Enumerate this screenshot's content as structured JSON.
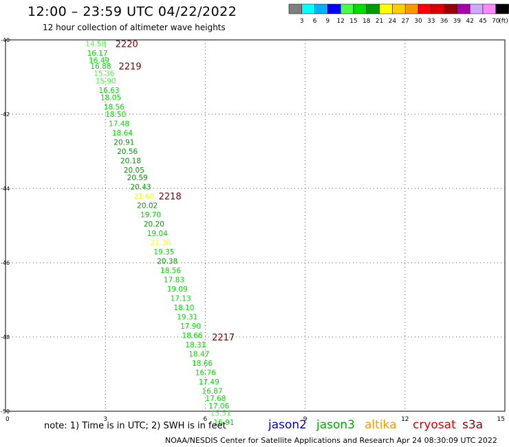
{
  "header": {
    "title": "12:00 – 23:59 UTC 04/22/2022",
    "subtitle": "12 hour collection of altimeter wave heights"
  },
  "footer": {
    "note": "note:  1) Time is in UTC; 2) SWH is in feet",
    "credit": "NOAA/NESDIS Center for Satellite Applications and Research    Apr 24 08:30:09 UTC 2022"
  },
  "satellites": [
    {
      "name": "jason2",
      "color": "#0000dd"
    },
    {
      "name": "jason3",
      "color": "#00aa00"
    },
    {
      "name": "altika",
      "color": "#ff9900"
    },
    {
      "name": "cryosat",
      "color": "#dd0000"
    },
    {
      "name": "s3a",
      "color": "#990000"
    }
  ],
  "colorbar": {
    "unit": "(ft)",
    "ticks": [
      "3",
      "6",
      "9",
      "12",
      "15",
      "18",
      "21",
      "24",
      "27",
      "30",
      "33",
      "36",
      "39",
      "42",
      "45",
      "70"
    ],
    "colors": [
      "#808080",
      "#00ffff",
      "#00b0ff",
      "#0000ff",
      "#44ff44",
      "#00dd00",
      "#009900",
      "#ffff00",
      "#ffcc00",
      "#ff9900",
      "#ff0000",
      "#dd0000",
      "#990000",
      "#aa00aa",
      "#ccaaff",
      "#ff88ff",
      "#000000"
    ]
  },
  "chart_data": {
    "type": "scatter",
    "title": "12:00 – 23:59 UTC 04/22/2022",
    "xlim": [
      0,
      15
    ],
    "ylim": [
      -50,
      -40
    ],
    "xticks": [
      "0",
      "3",
      "6",
      "9",
      "12",
      "15"
    ],
    "xtick_values": [
      0,
      3,
      6,
      9,
      12,
      15
    ],
    "yticks": [
      "-40",
      "-42",
      "-44",
      "-46",
      "-48",
      "-50"
    ],
    "ytick_values": [
      -40,
      -42,
      -44,
      -46,
      -48,
      -50
    ],
    "grid": true,
    "passes": [
      {
        "label": "2220",
        "x": 3.3,
        "y": -40.1
      },
      {
        "label": "2219",
        "x": 3.4,
        "y": -40.7
      },
      {
        "label": "2218",
        "x": 4.6,
        "y": -44.2
      },
      {
        "label": "2217",
        "x": 6.2,
        "y": -48.0
      }
    ],
    "points": [
      {
        "x": 2.4,
        "y": -40.1,
        "swh": "14.58",
        "color": "#44ff44"
      },
      {
        "x": 2.45,
        "y": -40.35,
        "swh": "16.17",
        "color": "#00dd00"
      },
      {
        "x": 2.5,
        "y": -40.55,
        "swh": "16.49",
        "color": "#00dd00"
      },
      {
        "x": 2.55,
        "y": -40.7,
        "swh": "16.88",
        "color": "#00dd00"
      },
      {
        "x": 2.65,
        "y": -40.9,
        "swh": "15.36",
        "color": "#44ff44"
      },
      {
        "x": 2.7,
        "y": -41.1,
        "swh": "15.90",
        "color": "#44ff44"
      },
      {
        "x": 2.8,
        "y": -41.35,
        "swh": "16.63",
        "color": "#00dd00"
      },
      {
        "x": 2.85,
        "y": -41.55,
        "swh": "18.05",
        "color": "#00dd00"
      },
      {
        "x": 2.95,
        "y": -41.8,
        "swh": "18.56",
        "color": "#00dd00"
      },
      {
        "x": 3.0,
        "y": -42.0,
        "swh": "18.50",
        "color": "#00dd00"
      },
      {
        "x": 3.1,
        "y": -42.25,
        "swh": "17.48",
        "color": "#00dd00"
      },
      {
        "x": 3.2,
        "y": -42.5,
        "swh": "18.64",
        "color": "#00dd00"
      },
      {
        "x": 3.25,
        "y": -42.75,
        "swh": "20.91",
        "color": "#009900"
      },
      {
        "x": 3.35,
        "y": -43.0,
        "swh": "20.56",
        "color": "#009900"
      },
      {
        "x": 3.45,
        "y": -43.25,
        "swh": "20.18",
        "color": "#009900"
      },
      {
        "x": 3.55,
        "y": -43.5,
        "swh": "20.05",
        "color": "#009900"
      },
      {
        "x": 3.65,
        "y": -43.7,
        "swh": "20.59",
        "color": "#009900"
      },
      {
        "x": 3.75,
        "y": -43.95,
        "swh": "20.43",
        "color": "#009900"
      },
      {
        "x": 3.85,
        "y": -44.2,
        "swh": "21.60",
        "color": "#ffff00"
      },
      {
        "x": 3.95,
        "y": -44.45,
        "swh": "20.02",
        "color": "#009900"
      },
      {
        "x": 4.05,
        "y": -44.7,
        "swh": "19.70",
        "color": "#00dd00"
      },
      {
        "x": 4.15,
        "y": -44.95,
        "swh": "20.20",
        "color": "#009900"
      },
      {
        "x": 4.25,
        "y": -45.2,
        "swh": "19.04",
        "color": "#00dd00"
      },
      {
        "x": 4.35,
        "y": -45.45,
        "swh": "21.36",
        "color": "#ffff00"
      },
      {
        "x": 4.45,
        "y": -45.7,
        "swh": "19.35",
        "color": "#00dd00"
      },
      {
        "x": 4.55,
        "y": -45.95,
        "swh": "20.38",
        "color": "#009900"
      },
      {
        "x": 4.65,
        "y": -46.2,
        "swh": "18.56",
        "color": "#00dd00"
      },
      {
        "x": 4.75,
        "y": -46.45,
        "swh": "17.83",
        "color": "#00dd00"
      },
      {
        "x": 4.85,
        "y": -46.7,
        "swh": "19.09",
        "color": "#00dd00"
      },
      {
        "x": 4.95,
        "y": -46.95,
        "swh": "17.13",
        "color": "#00dd00"
      },
      {
        "x": 5.05,
        "y": -47.2,
        "swh": "18.10",
        "color": "#00dd00"
      },
      {
        "x": 5.15,
        "y": -47.45,
        "swh": "19.31",
        "color": "#00dd00"
      },
      {
        "x": 5.25,
        "y": -47.7,
        "swh": "17.90",
        "color": "#00dd00"
      },
      {
        "x": 5.3,
        "y": -47.95,
        "swh": "18.66",
        "color": "#00dd00"
      },
      {
        "x": 5.4,
        "y": -48.2,
        "swh": "18.31",
        "color": "#00dd00"
      },
      {
        "x": 5.5,
        "y": -48.45,
        "swh": "18.47",
        "color": "#00dd00"
      },
      {
        "x": 5.6,
        "y": -48.7,
        "swh": "18.66",
        "color": "#00dd00"
      },
      {
        "x": 5.7,
        "y": -48.95,
        "swh": "16.76",
        "color": "#00dd00"
      },
      {
        "x": 5.8,
        "y": -49.2,
        "swh": "17.49",
        "color": "#00dd00"
      },
      {
        "x": 5.9,
        "y": -49.45,
        "swh": "16.87",
        "color": "#00dd00"
      },
      {
        "x": 6.0,
        "y": -49.65,
        "swh": "17.68",
        "color": "#00dd00"
      },
      {
        "x": 6.1,
        "y": -49.85,
        "swh": "17.06",
        "color": "#00dd00"
      },
      {
        "x": 6.15,
        "y": -50.05,
        "swh": "15.51",
        "color": "#44ff44"
      },
      {
        "x": 6.25,
        "y": -50.3,
        "swh": "16.91",
        "color": "#00dd00"
      }
    ]
  }
}
